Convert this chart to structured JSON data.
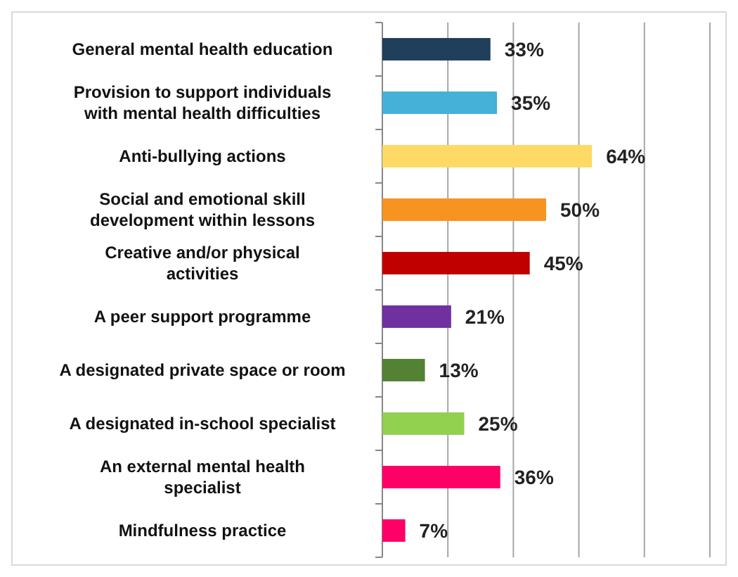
{
  "chart_data": {
    "type": "bar",
    "orientation": "horizontal",
    "categories": [
      "General mental health education",
      "Provision to support individuals with mental health difficulties",
      "Anti-bullying actions",
      "Social and emotional skill development within lessons",
      "Creative and/or physical activities",
      "A peer support programme",
      "A designated private space or room",
      "A designated in-school specialist",
      "An external mental health specialist",
      "Mindfulness practice"
    ],
    "values": [
      33,
      35,
      64,
      50,
      45,
      21,
      13,
      25,
      36,
      7
    ],
    "colors": [
      "#1f3f5b",
      "#45b0d8",
      "#ffd966",
      "#f79320",
      "#c00000",
      "#7030a0",
      "#548235",
      "#92d050",
      "#ff0066",
      "#ff0066"
    ],
    "value_labels": [
      "33%",
      "35%",
      "64%",
      "50%",
      "45%",
      "21%",
      "13%",
      "25%",
      "36%",
      "7%"
    ],
    "xlim": [
      0,
      100
    ],
    "xticks": [
      {
        "value": 0,
        "label": null
      },
      {
        "value": 20,
        "label": null
      },
      {
        "value": 40,
        "label": null
      },
      {
        "value": 60,
        "label": null
      },
      {
        "value": 80,
        "label": null
      },
      {
        "value": 100,
        "label": null
      }
    ],
    "grid": "x",
    "tick_labels": "y"
  }
}
